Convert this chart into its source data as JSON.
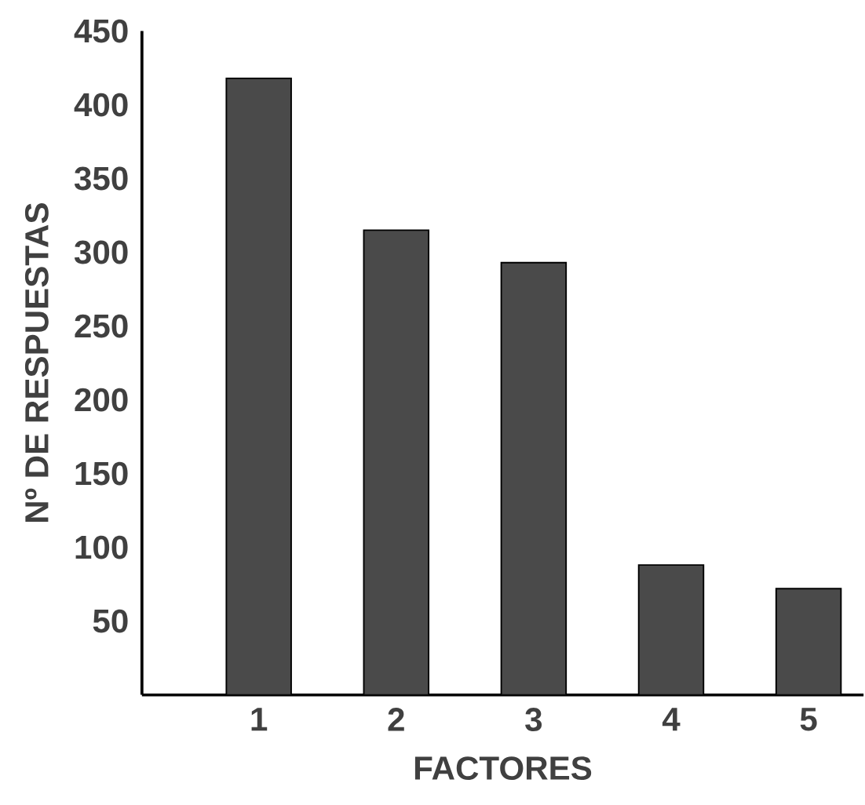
{
  "chart_data": {
    "type": "bar",
    "xlabel": "FACTORES",
    "ylabel": "Nº DE RESPUESTAS",
    "categories": [
      "1",
      "2",
      "3",
      "4",
      "5"
    ],
    "values": [
      418,
      315,
      293,
      88,
      72
    ],
    "color": "#4a4a4a",
    "ylim": [
      0,
      450
    ],
    "yticks": [
      50,
      100,
      150,
      200,
      250,
      300,
      350,
      400,
      450
    ],
    "grid": false
  }
}
